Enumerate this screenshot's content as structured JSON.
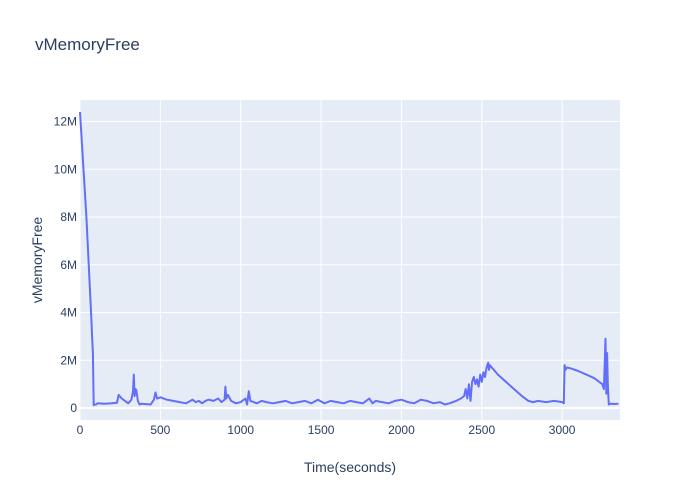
{
  "chart_data": {
    "type": "line",
    "title": "vMemoryFree",
    "xlabel": "Time(seconds)",
    "ylabel": "vMemoryFree",
    "xlim": [
      0,
      3360
    ],
    "ylim": [
      -500000,
      12900000
    ],
    "x_ticks": [
      0,
      500,
      1000,
      1500,
      2000,
      2500,
      3000
    ],
    "x_tick_labels": [
      "0",
      "500",
      "1000",
      "1500",
      "2000",
      "2500",
      "3000"
    ],
    "y_ticks": [
      0,
      2000000,
      4000000,
      6000000,
      8000000,
      10000000,
      12000000
    ],
    "y_tick_labels": [
      "0",
      "2M",
      "4M",
      "6M",
      "8M",
      "10M",
      "12M"
    ],
    "grid": true,
    "legend": "none",
    "colors": {
      "line": "#636efa",
      "plot_bg": "#e5ecf6",
      "grid": "#ffffff",
      "text": "#2a3f5f"
    },
    "series": [
      {
        "x": [
          0,
          40,
          70,
          75,
          80,
          85,
          90,
          100,
          110,
          150,
          200,
          230,
          240,
          260,
          280,
          300,
          320,
          330,
          335,
          340,
          345,
          350,
          360,
          370,
          380,
          400,
          440,
          460,
          470,
          480,
          500,
          540,
          580,
          620,
          660,
          700,
          720,
          740,
          760,
          780,
          800,
          830,
          860,
          880,
          900,
          905,
          910,
          920,
          940,
          970,
          1000,
          1030,
          1040,
          1050,
          1060,
          1080,
          1100,
          1130,
          1160,
          1200,
          1240,
          1280,
          1320,
          1360,
          1400,
          1440,
          1480,
          1520,
          1560,
          1600,
          1640,
          1680,
          1720,
          1760,
          1800,
          1820,
          1840,
          1880,
          1920,
          1960,
          2000,
          2040,
          2080,
          2120,
          2160,
          2200,
          2240,
          2270,
          2300,
          2340,
          2370,
          2390,
          2400,
          2410,
          2420,
          2430,
          2440,
          2450,
          2460,
          2470,
          2480,
          2490,
          2500,
          2510,
          2520,
          2530,
          2540,
          2545,
          2550,
          2600,
          2650,
          2700,
          2750,
          2790,
          2820,
          2850,
          2900,
          2950,
          3000,
          3010,
          3015,
          3020,
          3030,
          3060,
          3100,
          3150,
          3200,
          3250,
          3260,
          3270,
          3275,
          3280,
          3285,
          3290,
          3300,
          3320,
          3350
        ],
        "y": [
          12400000,
          8000000,
          3800000,
          3000000,
          2300000,
          120000,
          150000,
          150000,
          200000,
          180000,
          200000,
          220000,
          550000,
          400000,
          300000,
          200000,
          350000,
          700000,
          1400000,
          500000,
          800000,
          750000,
          300000,
          150000,
          180000,
          170000,
          150000,
          350000,
          650000,
          400000,
          450000,
          350000,
          300000,
          250000,
          200000,
          350000,
          250000,
          300000,
          200000,
          300000,
          350000,
          300000,
          400000,
          250000,
          350000,
          900000,
          400000,
          550000,
          300000,
          200000,
          250000,
          400000,
          150000,
          700000,
          300000,
          250000,
          200000,
          300000,
          250000,
          200000,
          250000,
          300000,
          200000,
          250000,
          300000,
          200000,
          350000,
          200000,
          300000,
          250000,
          200000,
          300000,
          250000,
          200000,
          400000,
          200000,
          300000,
          250000,
          200000,
          300000,
          350000,
          250000,
          200000,
          350000,
          300000,
          200000,
          250000,
          150000,
          200000,
          300000,
          400000,
          500000,
          800000,
          400000,
          1000000,
          300000,
          1100000,
          1300000,
          1000000,
          1200000,
          900000,
          1400000,
          1100000,
          1500000,
          1300000,
          1700000,
          1900000,
          1600000,
          1800000,
          1400000,
          1100000,
          800000,
          500000,
          300000,
          250000,
          300000,
          250000,
          300000,
          250000,
          200000,
          1800000,
          1600000,
          1700000,
          1650000,
          1550000,
          1400000,
          1250000,
          1000000,
          800000,
          2900000,
          600000,
          2300000,
          900000,
          150000,
          180000,
          170000,
          180000
        ]
      }
    ]
  }
}
